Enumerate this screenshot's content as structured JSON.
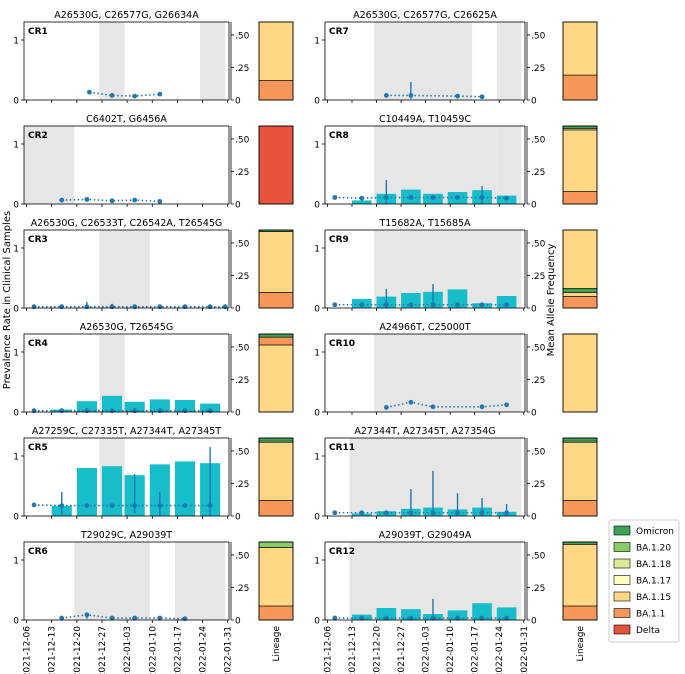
{
  "figure": {
    "ylabel_left": "Prevalence Rate in Clinical Samples",
    "ylabel_right": "Mean Allele Frequency",
    "lineage_xlabel": "Lineage",
    "x_ticks": [
      "2021-12-06",
      "2021-12-13",
      "2021-12-20",
      "2021-12-27",
      "2022-01-03",
      "2022-01-10",
      "2022-01-17",
      "2022-01-24",
      "2022-01-31"
    ],
    "left_ticks": [
      "0",
      "1"
    ],
    "right_ticks": [
      "0",
      ".25",
      ".50"
    ]
  },
  "legend": [
    {
      "label": "Omicron",
      "color": "#3aa356"
    },
    {
      "label": "BA.1.20",
      "color": "#88cc66"
    },
    {
      "label": "BA.1.18",
      "color": "#d8ec98"
    },
    {
      "label": "BA.1.17",
      "color": "#fefebe"
    },
    {
      "label": "BA.1.15",
      "color": "#fed884"
    },
    {
      "label": "BA.1.1",
      "color": "#f6975a"
    },
    {
      "label": "Delta",
      "color": "#e5533b"
    }
  ],
  "chart_data": [
    {
      "id": "CR1",
      "type": "bar+line",
      "title": "A26530G, C26577G, G26634A",
      "x_unit": "week index (0=2021-12-06)",
      "ylim": [
        0,
        1.3
      ],
      "y2lim": [
        0,
        0.6
      ],
      "shaded": [
        [
          2.9,
          3.9
        ],
        [
          6.9,
          7.9
        ]
      ],
      "bars": [],
      "line": [
        {
          "x": 2.5,
          "y": 0.12
        },
        {
          "x": 3.4,
          "y": 0.07
        },
        {
          "x": 4.3,
          "y": 0.06
        },
        {
          "x": 5.3,
          "y": 0.09
        }
      ],
      "errors": [],
      "lineage": [
        {
          "lineage": "BA.1.1",
          "frac": 0.25
        },
        {
          "lineage": "BA.1.15",
          "frac": 0.75
        }
      ]
    },
    {
      "id": "CR2",
      "type": "bar+line",
      "title": "C6402T, G6456A",
      "x_unit": "week index",
      "ylim": [
        0,
        1.3
      ],
      "y2lim": [
        0,
        0.6
      ],
      "shaded": [
        [
          -0.1,
          1.9
        ]
      ],
      "bars": [],
      "line": [
        {
          "x": 1.4,
          "y": 0.06
        },
        {
          "x": 2.4,
          "y": 0.07
        },
        {
          "x": 3.4,
          "y": 0.05
        },
        {
          "x": 4.3,
          "y": 0.06
        },
        {
          "x": 5.3,
          "y": 0.04
        }
      ],
      "errors": [],
      "lineage": [
        {
          "lineage": "Delta",
          "frac": 1.0
        }
      ]
    },
    {
      "id": "CR3",
      "type": "bar+line",
      "title": "A26530G, C26533T, C26542A, T26545G",
      "x_unit": "week index",
      "ylim": [
        0,
        1.3
      ],
      "y2lim": [
        0,
        0.6
      ],
      "shaded": [
        [
          2.9,
          4.9
        ]
      ],
      "bars": [],
      "line": [
        {
          "x": 0.3,
          "y": 0.02
        },
        {
          "x": 1.4,
          "y": 0.02
        },
        {
          "x": 2.4,
          "y": 0.02
        },
        {
          "x": 3.4,
          "y": 0.02
        },
        {
          "x": 4.3,
          "y": 0.02
        },
        {
          "x": 5.3,
          "y": 0.02
        },
        {
          "x": 6.3,
          "y": 0.02
        },
        {
          "x": 7.3,
          "y": 0.02
        },
        {
          "x": 7.9,
          "y": 0.02
        }
      ],
      "errors": [
        {
          "x": 2.4,
          "lo": 0.0,
          "hi": 0.1
        },
        {
          "x": 3.4,
          "lo": 0.0,
          "hi": 0.07
        },
        {
          "x": 7.3,
          "lo": 0.0,
          "hi": 0.05
        }
      ],
      "lineage": [
        {
          "lineage": "BA.1.1",
          "frac": 0.2
        },
        {
          "lineage": "BA.1.15",
          "frac": 0.78
        },
        {
          "lineage": "Omicron",
          "frac": 0.02
        }
      ]
    },
    {
      "id": "CR4",
      "type": "bar+line",
      "title": "A26530G, T26545G",
      "x_unit": "week index",
      "ylim": [
        0,
        1.3
      ],
      "y2lim": [
        0,
        0.6
      ],
      "shaded": [
        [
          2.9,
          3.9
        ]
      ],
      "bars": [
        {
          "x": 1.4,
          "y": 0.04
        },
        {
          "x": 2.4,
          "y": 0.18
        },
        {
          "x": 3.4,
          "y": 0.27
        },
        {
          "x": 4.3,
          "y": 0.17
        },
        {
          "x": 5.3,
          "y": 0.21
        },
        {
          "x": 6.3,
          "y": 0.2
        },
        {
          "x": 7.3,
          "y": 0.14
        }
      ],
      "line": [
        {
          "x": 0.3,
          "y": 0.02
        },
        {
          "x": 1.4,
          "y": 0.02
        },
        {
          "x": 2.4,
          "y": 0.02
        },
        {
          "x": 3.4,
          "y": 0.02
        },
        {
          "x": 4.3,
          "y": 0.02
        },
        {
          "x": 5.3,
          "y": 0.02
        },
        {
          "x": 6.3,
          "y": 0.02
        },
        {
          "x": 7.3,
          "y": 0.02
        }
      ],
      "errors": [],
      "lineage": [
        {
          "lineage": "BA.1.15",
          "frac": 0.86
        },
        {
          "lineage": "BA.1.1",
          "frac": 0.1
        },
        {
          "lineage": "Omicron",
          "frac": 0.04
        }
      ]
    },
    {
      "id": "CR5",
      "type": "bar+line",
      "title": "A27259C, C27335T, A27344T, A27345T",
      "x_unit": "week index",
      "ylim": [
        0,
        1.3
      ],
      "y2lim": [
        0,
        0.6
      ],
      "shaded": [
        [
          2.9,
          3.9
        ]
      ],
      "bars": [
        {
          "x": 1.4,
          "y": 0.17
        },
        {
          "x": 2.4,
          "y": 0.8
        },
        {
          "x": 3.4,
          "y": 0.83
        },
        {
          "x": 4.3,
          "y": 0.68
        },
        {
          "x": 5.3,
          "y": 0.86
        },
        {
          "x": 6.3,
          "y": 0.91
        },
        {
          "x": 7.3,
          "y": 0.88
        }
      ],
      "line": [
        {
          "x": 0.3,
          "y": 0.17
        },
        {
          "x": 1.4,
          "y": 0.16
        },
        {
          "x": 2.4,
          "y": 0.16
        },
        {
          "x": 3.4,
          "y": 0.16
        },
        {
          "x": 4.3,
          "y": 0.16
        },
        {
          "x": 5.3,
          "y": 0.16
        },
        {
          "x": 6.3,
          "y": 0.16
        },
        {
          "x": 7.3,
          "y": 0.16
        }
      ],
      "errors": [
        {
          "x": 1.4,
          "lo": 0.02,
          "hi": 0.4
        },
        {
          "x": 4.3,
          "lo": 0.05,
          "hi": 0.7
        },
        {
          "x": 5.3,
          "lo": 0.0,
          "hi": 0.4
        },
        {
          "x": 7.3,
          "lo": 0.0,
          "hi": 1.15
        }
      ],
      "lineage": [
        {
          "lineage": "BA.1.1",
          "frac": 0.2
        },
        {
          "lineage": "BA.1.15",
          "frac": 0.74
        },
        {
          "lineage": "BA.1.18",
          "frac": 0.02
        },
        {
          "lineage": "Omicron",
          "frac": 0.04
        }
      ]
    },
    {
      "id": "CR6",
      "type": "bar+line",
      "title": "T29029C, A29039T",
      "x_unit": "week index",
      "ylim": [
        0,
        1.3
      ],
      "y2lim": [
        0,
        0.6
      ],
      "shaded": [
        [
          1.9,
          4.9
        ],
        [
          5.9,
          7.9
        ]
      ],
      "bars": [],
      "line": [
        {
          "x": 1.4,
          "y": 0.03
        },
        {
          "x": 2.4,
          "y": 0.08
        },
        {
          "x": 3.4,
          "y": 0.03
        },
        {
          "x": 4.3,
          "y": 0.03
        },
        {
          "x": 5.3,
          "y": 0.03
        },
        {
          "x": 6.3,
          "y": 0.02
        }
      ],
      "errors": [
        {
          "x": 2.4,
          "lo": 0.02,
          "hi": 0.12
        }
      ],
      "lineage": [
        {
          "lineage": "BA.1.1",
          "frac": 0.18
        },
        {
          "lineage": "BA.1.15",
          "frac": 0.75
        },
        {
          "lineage": "BA.1.20",
          "frac": 0.07
        }
      ]
    },
    {
      "id": "CR7",
      "type": "bar+line",
      "title": "A26530G, C26577G, C26625A",
      "x_unit": "week index",
      "ylim": [
        0,
        1.3
      ],
      "y2lim": [
        0,
        0.6
      ],
      "shaded": [
        [
          1.9,
          5.9
        ],
        [
          6.9,
          7.9
        ]
      ],
      "bars": [],
      "line": [
        {
          "x": 2.4,
          "y": 0.07
        },
        {
          "x": 3.4,
          "y": 0.07
        },
        {
          "x": 5.3,
          "y": 0.06
        },
        {
          "x": 6.3,
          "y": 0.05
        }
      ],
      "errors": [
        {
          "x": 3.4,
          "lo": 0.02,
          "hi": 0.3
        }
      ],
      "lineage": [
        {
          "lineage": "BA.1.1",
          "frac": 0.32
        },
        {
          "lineage": "BA.1.15",
          "frac": 0.68
        }
      ]
    },
    {
      "id": "CR8",
      "type": "bar+line",
      "title": "C10449A, T10459C",
      "x_unit": "week index",
      "ylim": [
        0,
        1.3
      ],
      "y2lim": [
        0,
        0.6
      ],
      "shaded": [
        [
          1.9,
          6.9
        ],
        [
          6.9,
          7.9
        ]
      ],
      "bars": [
        {
          "x": 1.4,
          "y": 0.06
        },
        {
          "x": 2.4,
          "y": 0.17
        },
        {
          "x": 3.4,
          "y": 0.24
        },
        {
          "x": 4.3,
          "y": 0.17
        },
        {
          "x": 5.3,
          "y": 0.2
        },
        {
          "x": 6.3,
          "y": 0.23
        },
        {
          "x": 7.3,
          "y": 0.14
        }
      ],
      "line": [
        {
          "x": 0.3,
          "y": 0.1
        },
        {
          "x": 1.4,
          "y": 0.09
        },
        {
          "x": 2.4,
          "y": 0.1
        },
        {
          "x": 3.4,
          "y": 0.1
        },
        {
          "x": 4.3,
          "y": 0.1
        },
        {
          "x": 5.3,
          "y": 0.1
        },
        {
          "x": 6.3,
          "y": 0.1
        },
        {
          "x": 7.3,
          "y": 0.09
        }
      ],
      "errors": [
        {
          "x": 2.4,
          "lo": 0.0,
          "hi": 0.4
        },
        {
          "x": 6.3,
          "lo": 0.0,
          "hi": 0.3
        }
      ],
      "lineage": [
        {
          "lineage": "BA.1.1",
          "frac": 0.16
        },
        {
          "lineage": "BA.1.15",
          "frac": 0.79
        },
        {
          "lineage": "BA.1.18",
          "frac": 0.02
        },
        {
          "lineage": "Omicron",
          "frac": 0.03
        }
      ]
    },
    {
      "id": "CR9",
      "type": "bar+line",
      "title": "T15682A, T15685A",
      "x_unit": "week index",
      "ylim": [
        0,
        1.3
      ],
      "y2lim": [
        0,
        0.6
      ],
      "shaded": [
        [
          1.9,
          7.9
        ]
      ],
      "bars": [
        {
          "x": 1.4,
          "y": 0.15
        },
        {
          "x": 2.4,
          "y": 0.19
        },
        {
          "x": 3.4,
          "y": 0.25
        },
        {
          "x": 4.3,
          "y": 0.27
        },
        {
          "x": 5.3,
          "y": 0.31
        },
        {
          "x": 6.3,
          "y": 0.08
        },
        {
          "x": 7.3,
          "y": 0.2
        }
      ],
      "line": [
        {
          "x": 0.3,
          "y": 0.05
        },
        {
          "x": 1.4,
          "y": 0.05
        },
        {
          "x": 2.4,
          "y": 0.05
        },
        {
          "x": 3.4,
          "y": 0.05
        },
        {
          "x": 4.3,
          "y": 0.05
        },
        {
          "x": 5.3,
          "y": 0.05
        },
        {
          "x": 6.3,
          "y": 0.05
        },
        {
          "x": 7.3,
          "y": 0.05
        }
      ],
      "errors": [
        {
          "x": 2.4,
          "lo": 0.0,
          "hi": 0.32
        },
        {
          "x": 4.3,
          "lo": 0.0,
          "hi": 0.4
        }
      ],
      "lineage": [
        {
          "lineage": "BA.1.1",
          "frac": 0.15
        },
        {
          "lineage": "BA.1.15",
          "frac": 0.05
        },
        {
          "lineage": "Omicron",
          "frac": 0.05
        },
        {
          "lineage": "BA.1.15",
          "frac": 0.75
        }
      ]
    },
    {
      "id": "CR10",
      "type": "bar+line",
      "title": "A24966T, C25000T",
      "x_unit": "week index",
      "ylim": [
        0,
        1.3
      ],
      "y2lim": [
        0,
        0.6
      ],
      "shaded": [
        [
          1.9,
          7.9
        ]
      ],
      "bars": [],
      "line": [
        {
          "x": 2.4,
          "y": 0.07
        },
        {
          "x": 3.4,
          "y": 0.15
        },
        {
          "x": 4.3,
          "y": 0.08
        },
        {
          "x": 6.3,
          "y": 0.08
        },
        {
          "x": 7.3,
          "y": 0.11
        }
      ],
      "errors": [],
      "lineage": [
        {
          "lineage": "BA.1.15",
          "frac": 1.0
        }
      ]
    },
    {
      "id": "CR11",
      "type": "bar+line",
      "title": "A27344T, A27345T, A27354G",
      "x_unit": "week index",
      "ylim": [
        0,
        1.3
      ],
      "y2lim": [
        0,
        0.6
      ],
      "shaded": [
        [
          0.9,
          7.9
        ]
      ],
      "bars": [
        {
          "x": 1.4,
          "y": 0.04
        },
        {
          "x": 2.4,
          "y": 0.08
        },
        {
          "x": 3.4,
          "y": 0.12
        },
        {
          "x": 4.3,
          "y": 0.14
        },
        {
          "x": 5.3,
          "y": 0.11
        },
        {
          "x": 6.3,
          "y": 0.14
        },
        {
          "x": 7.3,
          "y": 0.07
        }
      ],
      "line": [
        {
          "x": 0.3,
          "y": 0.05
        },
        {
          "x": 1.4,
          "y": 0.05
        },
        {
          "x": 2.4,
          "y": 0.05
        },
        {
          "x": 3.4,
          "y": 0.05
        },
        {
          "x": 4.3,
          "y": 0.05
        },
        {
          "x": 5.3,
          "y": 0.05
        },
        {
          "x": 6.3,
          "y": 0.05
        },
        {
          "x": 7.3,
          "y": 0.05
        }
      ],
      "errors": [
        {
          "x": 3.4,
          "lo": 0.0,
          "hi": 0.45
        },
        {
          "x": 4.3,
          "lo": 0.0,
          "hi": 0.75
        },
        {
          "x": 5.3,
          "lo": 0.0,
          "hi": 0.38
        },
        {
          "x": 6.3,
          "lo": 0.0,
          "hi": 0.3
        },
        {
          "x": 7.3,
          "lo": 0.0,
          "hi": 0.2
        }
      ],
      "lineage": [
        {
          "lineage": "BA.1.1",
          "frac": 0.2
        },
        {
          "lineage": "BA.1.15",
          "frac": 0.74
        },
        {
          "lineage": "BA.1.18",
          "frac": 0.02
        },
        {
          "lineage": "Omicron",
          "frac": 0.04
        }
      ]
    },
    {
      "id": "CR12",
      "type": "bar+line",
      "title": "A29039T, G29049A",
      "x_unit": "week index",
      "ylim": [
        0,
        1.3
      ],
      "y2lim": [
        0,
        0.6
      ],
      "shaded": [
        [
          0.9,
          7.9
        ]
      ],
      "bars": [
        {
          "x": 1.4,
          "y": 0.09
        },
        {
          "x": 2.4,
          "y": 0.2
        },
        {
          "x": 3.4,
          "y": 0.18
        },
        {
          "x": 4.3,
          "y": 0.1
        },
        {
          "x": 5.3,
          "y": 0.16
        },
        {
          "x": 6.3,
          "y": 0.28
        },
        {
          "x": 7.3,
          "y": 0.21
        }
      ],
      "line": [
        {
          "x": 0.3,
          "y": 0.03
        },
        {
          "x": 1.4,
          "y": 0.03
        },
        {
          "x": 2.4,
          "y": 0.03
        },
        {
          "x": 3.4,
          "y": 0.03
        },
        {
          "x": 4.3,
          "y": 0.03
        },
        {
          "x": 5.3,
          "y": 0.03
        },
        {
          "x": 6.3,
          "y": 0.03
        },
        {
          "x": 7.3,
          "y": 0.03
        }
      ],
      "errors": [
        {
          "x": 4.3,
          "lo": 0.0,
          "hi": 0.35
        }
      ],
      "lineage": [
        {
          "lineage": "BA.1.1",
          "frac": 0.18
        },
        {
          "lineage": "BA.1.15",
          "frac": 0.79
        },
        {
          "lineage": "Omicron",
          "frac": 0.03
        }
      ]
    }
  ]
}
